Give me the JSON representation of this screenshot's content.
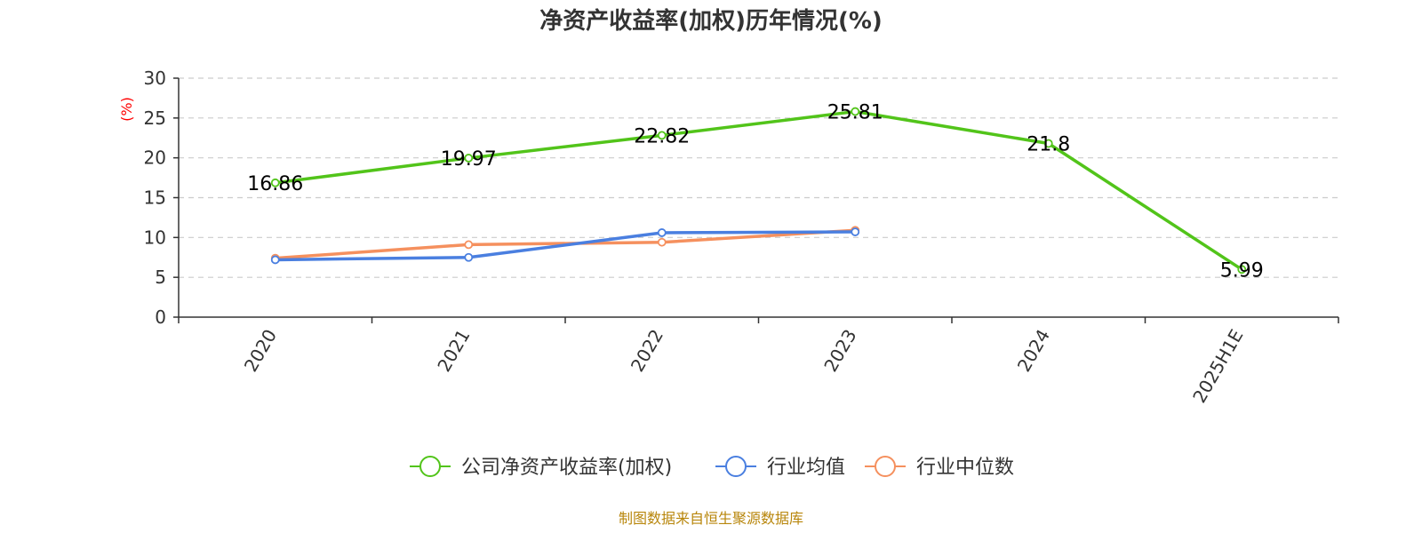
{
  "chart_data": {
    "type": "line",
    "title": "净资产收益率(加权)历年情况(%)",
    "ylabel": "(%)",
    "xlabel": "",
    "ylim": [
      0,
      30
    ],
    "yticks": [
      0,
      5,
      10,
      15,
      20,
      25,
      30
    ],
    "categories": [
      "2020",
      "2021",
      "2022",
      "2023",
      "2024",
      "2025H1E"
    ],
    "grid": true,
    "legend_position": "bottom",
    "series": [
      {
        "name": "公司净资产收益率(加权)",
        "color": "#52c41a",
        "values": [
          16.86,
          19.97,
          22.82,
          25.81,
          21.8,
          5.99
        ],
        "labels": [
          "16.86",
          "19.97",
          "22.82",
          "25.81",
          "21.8",
          "5.99"
        ],
        "show_labels": true
      },
      {
        "name": "行业均值",
        "color": "#4a7fe0",
        "values": [
          7.2,
          7.5,
          10.6,
          10.7,
          null,
          null
        ],
        "show_labels": false
      },
      {
        "name": "行业中位数",
        "color": "#f5905e",
        "values": [
          7.4,
          9.1,
          9.4,
          10.9,
          null,
          null
        ],
        "show_labels": false
      }
    ]
  },
  "source_note": "制图数据来自恒生聚源数据库"
}
